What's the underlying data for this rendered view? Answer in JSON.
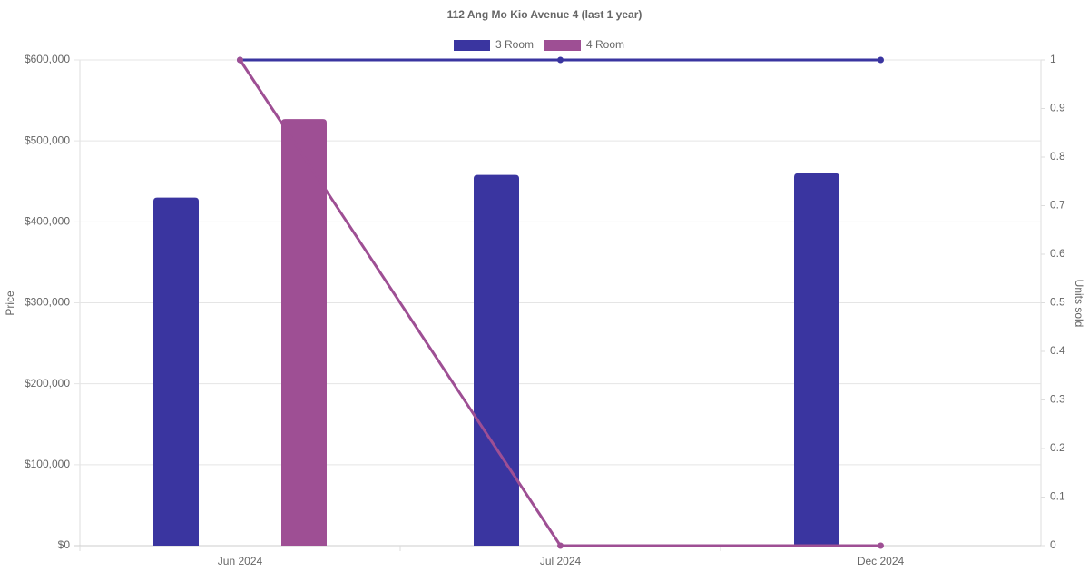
{
  "chart_data": {
    "type": "bar-line",
    "title": "112 Ang Mo Kio Avenue 4 (last 1 year)",
    "categories": [
      "Jun 2024",
      "Jul 2024",
      "Dec 2024"
    ],
    "series": [
      {
        "name": "3 Room",
        "color": "#3a35a0",
        "values": [
          430000,
          458000,
          460000
        ],
        "units": [
          1,
          1,
          1
        ]
      },
      {
        "name": "4 Room",
        "color": "#9e4f94",
        "values": [
          527000,
          null,
          null
        ],
        "units": [
          1,
          0,
          0
        ]
      }
    ],
    "ylabel": "Price",
    "y2label": "Units sold",
    "ylim": [
      0,
      600000
    ],
    "yticks": [
      {
        "value": 0,
        "label": "$0"
      },
      {
        "value": 100000,
        "label": "$100,000"
      },
      {
        "value": 200000,
        "label": "$200,000"
      },
      {
        "value": 300000,
        "label": "$300,000"
      },
      {
        "value": 400000,
        "label": "$400,000"
      },
      {
        "value": 500000,
        "label": "$500,000"
      },
      {
        "value": 600000,
        "label": "$600,000"
      }
    ],
    "y2lim": [
      0,
      1
    ],
    "y2ticks": [
      0,
      0.1,
      0.2,
      0.3,
      0.4,
      0.5,
      0.6,
      0.7,
      0.8,
      0.9,
      1
    ],
    "grid": true,
    "legend": "top"
  }
}
